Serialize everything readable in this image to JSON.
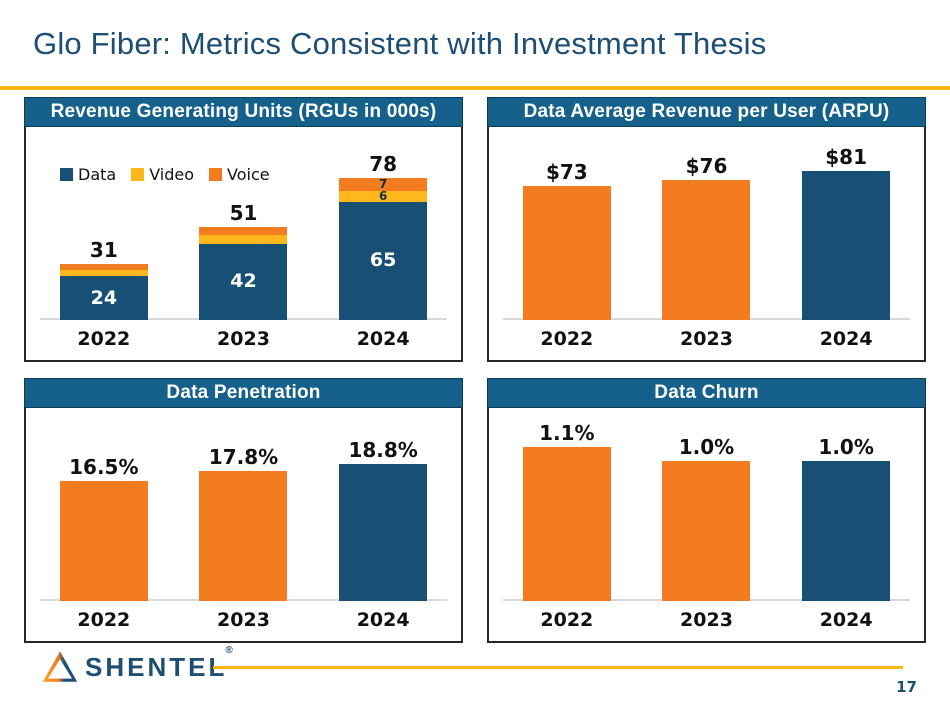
{
  "slide": {
    "title": "Glo Fiber: Metrics Consistent with Investment Thesis",
    "page_number": "17",
    "logo": {
      "text": "SHENTEL",
      "registered_mark": "®"
    }
  },
  "colors": {
    "title_navy": "#1D4E74",
    "gold_rule": "#FDB411",
    "header_blue": "#15618C",
    "data_navy": "#174F75",
    "orange": "#F47C20",
    "video_gold": "#FFB81C",
    "baseline_gray": "#D9D9D9"
  },
  "chart_data": [
    {
      "id": "rgu",
      "type": "bar",
      "stacked": true,
      "title": "Revenue Generating Units (RGUs in 000s)",
      "categories": [
        "2022",
        "2023",
        "2024"
      ],
      "series": [
        {
          "name": "Data",
          "color": "#174F75",
          "values": [
            24,
            42,
            65
          ],
          "labels": [
            "24",
            "42",
            "65"
          ],
          "label_color": "#ffffff",
          "label_size": 19
        },
        {
          "name": "Video",
          "color": "#FFB81C",
          "values": [
            3.5,
            4.5,
            6
          ],
          "labels": [
            "",
            "",
            "6"
          ],
          "label_color": "#14314A",
          "label_size": 12
        },
        {
          "name": "Voice",
          "color": "#F47C20",
          "values": [
            3.5,
            4.5,
            7
          ],
          "labels": [
            "",
            "",
            "7"
          ],
          "label_color": "#14314A",
          "label_size": 12
        }
      ],
      "totals": [
        "31",
        "51",
        "78"
      ],
      "legend": [
        {
          "label": "Data",
          "color": "#174F75"
        },
        {
          "label": "Video",
          "color": "#FFB81C"
        },
        {
          "label": "Voice",
          "color": "#F47C20"
        }
      ],
      "legend_position": "top-left",
      "grid": false,
      "ylim": [
        0,
        106
      ]
    },
    {
      "id": "arpu",
      "type": "bar",
      "stacked": false,
      "title": "Data Average Revenue per User (ARPU)",
      "categories": [
        "2022",
        "2023",
        "2024"
      ],
      "values": [
        73,
        76,
        81
      ],
      "labels": [
        "$73",
        "$76",
        "$81"
      ],
      "colors": [
        "#F47C20",
        "#F47C20",
        "#174F75"
      ],
      "grid": false,
      "ylim": [
        0,
        105
      ]
    },
    {
      "id": "penetration",
      "type": "bar",
      "stacked": false,
      "title": "Data Penetration",
      "categories": [
        "2022",
        "2023",
        "2024"
      ],
      "values": [
        16.5,
        17.8,
        18.8
      ],
      "labels": [
        "16.5%",
        "17.8%",
        "18.8%"
      ],
      "colors": [
        "#F47C20",
        "#F47C20",
        "#174F75"
      ],
      "grid": false,
      "ylim": [
        0,
        26.5
      ]
    },
    {
      "id": "churn",
      "type": "bar",
      "stacked": false,
      "title": "Data Churn",
      "categories": [
        "2022",
        "2023",
        "2024"
      ],
      "values": [
        1.1,
        1.0,
        1.0
      ],
      "labels": [
        "1.1%",
        "1.0%",
        "1.0%"
      ],
      "colors": [
        "#F47C20",
        "#F47C20",
        "#174F75"
      ],
      "grid": false,
      "ylim": [
        0,
        1.38
      ]
    }
  ]
}
